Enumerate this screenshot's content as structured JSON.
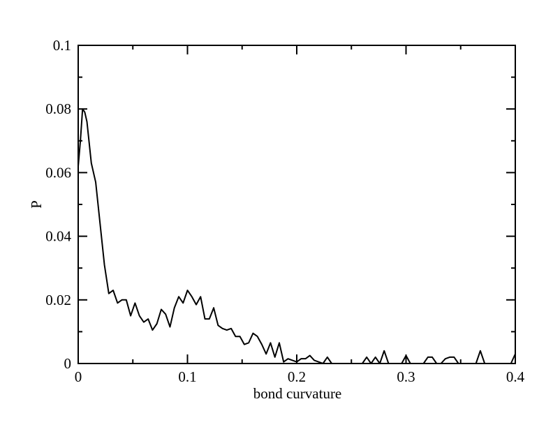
{
  "chart_data": {
    "type": "line",
    "title": "",
    "xlabel": "bond curvature",
    "ylabel": "P",
    "xlim": [
      0,
      0.4
    ],
    "ylim": [
      0,
      0.1
    ],
    "grid": false,
    "legend": "none",
    "line_color": "#000000",
    "x_ticks": [
      {
        "value": 0,
        "label": "0"
      },
      {
        "value": 0.1,
        "label": "0.1"
      },
      {
        "value": 0.2,
        "label": "0.2"
      },
      {
        "value": 0.3,
        "label": "0.3"
      },
      {
        "value": 0.4,
        "label": "0.4"
      }
    ],
    "y_ticks": [
      {
        "value": 0,
        "label": "0"
      },
      {
        "value": 0.02,
        "label": "0.02"
      },
      {
        "value": 0.04,
        "label": "0.04"
      },
      {
        "value": 0.06,
        "label": "0.06"
      },
      {
        "value": 0.08,
        "label": "0.08"
      },
      {
        "value": 0.1,
        "label": "0.1"
      }
    ],
    "x_minor_step": 0.05,
    "y_minor_step": 0.01,
    "series": [
      {
        "x": [
          0,
          0.002,
          0.004,
          0.006,
          0.008,
          0.012,
          0.016,
          0.02,
          0.024,
          0.028,
          0.032,
          0.036,
          0.04,
          0.044,
          0.048,
          0.052,
          0.056,
          0.06,
          0.064,
          0.068,
          0.072,
          0.076,
          0.08,
          0.084,
          0.088,
          0.092,
          0.096,
          0.1,
          0.104,
          0.108,
          0.112,
          0.116,
          0.12,
          0.124,
          0.128,
          0.132,
          0.136,
          0.14,
          0.144,
          0.148,
          0.152,
          0.156,
          0.16,
          0.164,
          0.168,
          0.172,
          0.176,
          0.18,
          0.184,
          0.188,
          0.192,
          0.196,
          0.2,
          0.204,
          0.208,
          0.212,
          0.216,
          0.22,
          0.224,
          0.228,
          0.232,
          0.236,
          0.24,
          0.244,
          0.248,
          0.252,
          0.256,
          0.26,
          0.264,
          0.268,
          0.272,
          0.276,
          0.28,
          0.284,
          0.288,
          0.292,
          0.296,
          0.3,
          0.304,
          0.308,
          0.312,
          0.316,
          0.32,
          0.324,
          0.328,
          0.332,
          0.336,
          0.34,
          0.344,
          0.348,
          0.352,
          0.356,
          0.36,
          0.364,
          0.368,
          0.372,
          0.376,
          0.38,
          0.384,
          0.388,
          0.392,
          0.396,
          0.4
        ],
        "y": [
          0.062,
          0.07,
          0.08,
          0.079,
          0.076,
          0.063,
          0.057,
          0.044,
          0.031,
          0.022,
          0.023,
          0.019,
          0.02,
          0.02,
          0.015,
          0.019,
          0.015,
          0.013,
          0.014,
          0.0105,
          0.0125,
          0.017,
          0.0155,
          0.0115,
          0.0175,
          0.021,
          0.019,
          0.023,
          0.021,
          0.0185,
          0.021,
          0.014,
          0.014,
          0.0175,
          0.012,
          0.011,
          0.0105,
          0.011,
          0.0085,
          0.0085,
          0.006,
          0.0065,
          0.0095,
          0.0085,
          0.006,
          0.003,
          0.0065,
          0.002,
          0.0065,
          0.0005,
          0.0015,
          0.001,
          0.0005,
          0.0015,
          0.0015,
          0.0025,
          0.001,
          0.0005,
          0,
          0.002,
          0,
          0,
          0,
          0,
          0,
          0,
          0,
          0,
          0.002,
          0,
          0.002,
          0,
          0.004,
          0,
          0,
          0,
          0,
          0.0025,
          0,
          0,
          0,
          0,
          0.002,
          0.002,
          0,
          0,
          0.0015,
          0.002,
          0.002,
          0,
          0,
          0,
          0,
          0,
          0.004,
          0,
          0,
          0,
          0,
          0,
          0,
          0,
          0.003
        ]
      }
    ]
  }
}
